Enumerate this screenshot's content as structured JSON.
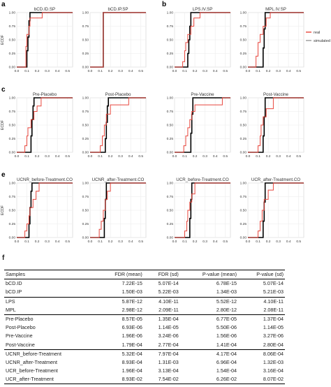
{
  "panel_letters": [
    "a",
    "b",
    "c",
    "e",
    "f"
  ],
  "y_axis_label": "ECDF",
  "legend": {
    "items": [
      {
        "label": "real",
        "color": "#e8463c"
      },
      {
        "label": "simulated",
        "color": "#9a9a9a"
      }
    ]
  },
  "colors": {
    "real": "#e8463c",
    "simulated": "#000000"
  },
  "chart_data": [
    {
      "type": "line",
      "title": "bCD.ID.SP",
      "xlim": [
        0,
        0.55
      ],
      "ylim": [
        0,
        1.0
      ],
      "x_ticks": [
        "0.0",
        "0.1",
        "0.2",
        "0.3",
        "0.4",
        "0.5"
      ],
      "y_ticks": [
        "0.00",
        "0.25",
        "0.50",
        "0.75",
        "1.00"
      ],
      "series": [
        {
          "name": "real",
          "x": [
            0.06,
            0.09,
            0.1,
            0.12,
            0.13,
            0.25,
            0.55
          ],
          "y": [
            0.0,
            0.38,
            0.6,
            0.75,
            0.9,
            1.0,
            1.0
          ]
        },
        {
          "name": "simulated",
          "x": [
            0.09,
            0.1,
            0.11,
            0.12,
            0.13,
            0.55
          ],
          "y": [
            0.0,
            0.3,
            0.55,
            0.85,
            1.0,
            1.0
          ]
        }
      ]
    },
    {
      "type": "line",
      "title": "bCD.IP.SP",
      "xlim": [
        0,
        0.55
      ],
      "ylim": [
        0,
        1.0
      ],
      "x_ticks": [
        "0.0",
        "0.1",
        "0.2",
        "0.3",
        "0.4",
        "0.5"
      ],
      "y_ticks": [
        "0.00",
        "0.25",
        "0.50",
        "0.75",
        "1.00"
      ],
      "series": [
        {
          "name": "real",
          "x": [
            0.12,
            0.13,
            0.55
          ],
          "y": [
            0.0,
            1.0,
            1.0
          ]
        },
        {
          "name": "simulated",
          "x": [
            0.12,
            0.13,
            0.55
          ],
          "y": [
            0.0,
            1.0,
            1.0
          ]
        }
      ]
    },
    {
      "type": "line",
      "title": "LPS.IV.SP",
      "xlim": [
        0,
        0.55
      ],
      "ylim": [
        0,
        1.0
      ],
      "x_ticks": [
        "0.0",
        "0.1",
        "0.2",
        "0.3",
        "0.4",
        "0.5"
      ],
      "y_ticks": [
        "0.00",
        "0.25",
        "0.50",
        "0.75",
        "1.00"
      ],
      "series": [
        {
          "name": "real",
          "x": [
            0.07,
            0.08,
            0.1,
            0.11,
            0.13,
            0.16,
            0.19,
            0.25,
            0.55
          ],
          "y": [
            0.0,
            0.1,
            0.3,
            0.45,
            0.6,
            0.75,
            0.9,
            1.0,
            1.0
          ]
        },
        {
          "name": "simulated",
          "x": [
            0.12,
            0.13,
            0.14,
            0.15,
            0.16,
            0.55
          ],
          "y": [
            0.0,
            0.25,
            0.5,
            0.75,
            1.0,
            1.0
          ]
        }
      ]
    },
    {
      "type": "line",
      "title": "MPL.IV.SP",
      "xlim": [
        0,
        0.55
      ],
      "ylim": [
        0,
        1.0
      ],
      "x_ticks": [
        "0.0",
        "0.1",
        "0.2",
        "0.3",
        "0.4",
        "0.5"
      ],
      "y_ticks": [
        "0.00",
        "0.25",
        "0.50",
        "0.75",
        "1.00"
      ],
      "series": [
        {
          "name": "real",
          "x": [
            0.06,
            0.08,
            0.1,
            0.12,
            0.15,
            0.18,
            0.22,
            0.55
          ],
          "y": [
            0.0,
            0.2,
            0.45,
            0.6,
            0.75,
            0.9,
            1.0,
            1.0
          ]
        },
        {
          "name": "simulated",
          "x": [
            0.14,
            0.15,
            0.16,
            0.17,
            0.55
          ],
          "y": [
            0.0,
            0.35,
            0.7,
            1.0,
            1.0
          ]
        }
      ]
    },
    {
      "type": "line",
      "title": "Pre-Placebo",
      "xlim": [
        0,
        0.55
      ],
      "ylim": [
        0,
        1.0
      ],
      "x_ticks": [
        "0.0",
        "0.1",
        "0.2",
        "0.3",
        "0.4",
        "0.5"
      ],
      "y_ticks": [
        "0.00",
        "0.25",
        "0.50",
        "0.75",
        "1.00"
      ],
      "series": [
        {
          "name": "real",
          "x": [
            0.05,
            0.08,
            0.1,
            0.11,
            0.14,
            0.17,
            0.2,
            0.24,
            0.55
          ],
          "y": [
            0.0,
            0.12,
            0.3,
            0.45,
            0.6,
            0.75,
            0.85,
            1.0,
            1.0
          ]
        },
        {
          "name": "simulated",
          "x": [
            0.13,
            0.14,
            0.15,
            0.16,
            0.17,
            0.55
          ],
          "y": [
            0.0,
            0.3,
            0.6,
            0.85,
            1.0,
            1.0
          ]
        }
      ]
    },
    {
      "type": "line",
      "title": "Post-Placebo",
      "xlim": [
        0,
        0.55
      ],
      "ylim": [
        0,
        1.0
      ],
      "x_ticks": [
        "0.0",
        "0.1",
        "0.2",
        "0.3",
        "0.4",
        "0.5"
      ],
      "y_ticks": [
        "0.00",
        "0.25",
        "0.50",
        "0.75",
        "1.00"
      ],
      "series": [
        {
          "name": "real",
          "x": [
            0.06,
            0.1,
            0.12,
            0.14,
            0.16,
            0.2,
            0.38,
            0.55
          ],
          "y": [
            0.0,
            0.12,
            0.3,
            0.5,
            0.7,
            0.87,
            1.0,
            1.0
          ]
        },
        {
          "name": "simulated",
          "x": [
            0.14,
            0.15,
            0.16,
            0.17,
            0.18,
            0.55
          ],
          "y": [
            0.0,
            0.25,
            0.55,
            0.85,
            1.0,
            1.0
          ]
        }
      ]
    },
    {
      "type": "line",
      "title": "Pre-Vaccine",
      "xlim": [
        0,
        0.55
      ],
      "ylim": [
        0,
        1.0
      ],
      "x_ticks": [
        "0.0",
        "0.1",
        "0.2",
        "0.3",
        "0.4",
        "0.5"
      ],
      "y_ticks": [
        "0.00",
        "0.25",
        "0.50",
        "0.75",
        "1.00"
      ],
      "series": [
        {
          "name": "real",
          "x": [
            0.07,
            0.09,
            0.11,
            0.13,
            0.15,
            0.17,
            0.2,
            0.47,
            0.55
          ],
          "y": [
            0.0,
            0.12,
            0.3,
            0.45,
            0.6,
            0.75,
            0.87,
            1.0,
            1.0
          ]
        },
        {
          "name": "simulated",
          "x": [
            0.15,
            0.16,
            0.17,
            0.18,
            0.55
          ],
          "y": [
            0.0,
            0.35,
            0.7,
            1.0,
            1.0
          ]
        }
      ]
    },
    {
      "type": "line",
      "title": "Post-Vaccine",
      "xlim": [
        0,
        0.55
      ],
      "ylim": [
        0,
        1.0
      ],
      "x_ticks": [
        "0.0",
        "0.1",
        "0.2",
        "0.3",
        "0.4",
        "0.5"
      ],
      "y_ticks": [
        "0.00",
        "0.25",
        "0.50",
        "0.75",
        "1.00"
      ],
      "series": [
        {
          "name": "real",
          "x": [
            0.07,
            0.1,
            0.12,
            0.13,
            0.15,
            0.18,
            0.25,
            0.55
          ],
          "y": [
            0.0,
            0.12,
            0.3,
            0.5,
            0.65,
            0.8,
            1.0,
            1.0
          ]
        },
        {
          "name": "simulated",
          "x": [
            0.14,
            0.15,
            0.16,
            0.17,
            0.55
          ],
          "y": [
            0.0,
            0.3,
            0.65,
            1.0,
            1.0
          ]
        }
      ]
    },
    {
      "type": "line",
      "title": "UCNR_before-Treatment.CO",
      "xlim": [
        0,
        0.55
      ],
      "ylim": [
        0,
        1.0
      ],
      "x_ticks": [
        "0.0",
        "0.1",
        "0.2",
        "0.3",
        "0.4",
        "0.5"
      ],
      "y_ticks": [
        "0.00",
        "0.25",
        "0.50",
        "0.75",
        "1.00"
      ],
      "series": [
        {
          "name": "real",
          "x": [
            0.05,
            0.08,
            0.1,
            0.12,
            0.13,
            0.16,
            0.19,
            0.22,
            0.55
          ],
          "y": [
            0.0,
            0.12,
            0.25,
            0.4,
            0.55,
            0.7,
            0.85,
            1.0,
            1.0
          ]
        },
        {
          "name": "simulated",
          "x": [
            0.11,
            0.12,
            0.13,
            0.14,
            0.15,
            0.55
          ],
          "y": [
            0.0,
            0.25,
            0.55,
            0.85,
            1.0,
            1.0
          ]
        }
      ]
    },
    {
      "type": "line",
      "title": "UCNR_after-Treatment.CO",
      "xlim": [
        0,
        0.55
      ],
      "ylim": [
        0,
        1.0
      ],
      "x_ticks": [
        "0.0",
        "0.1",
        "0.2",
        "0.3",
        "0.4",
        "0.5"
      ],
      "y_ticks": [
        "0.00",
        "0.25",
        "0.50",
        "0.75",
        "1.00"
      ],
      "series": [
        {
          "name": "real",
          "x": [
            0.06,
            0.09,
            0.11,
            0.13,
            0.15,
            0.17,
            0.2,
            0.55
          ],
          "y": [
            0.0,
            0.15,
            0.3,
            0.5,
            0.7,
            0.85,
            1.0,
            1.0
          ]
        },
        {
          "name": "simulated",
          "x": [
            0.13,
            0.14,
            0.15,
            0.16,
            0.55
          ],
          "y": [
            0.0,
            0.35,
            0.7,
            1.0,
            1.0
          ]
        }
      ]
    },
    {
      "type": "line",
      "title": "UCR_before-Treatment.CO",
      "xlim": [
        0,
        0.55
      ],
      "ylim": [
        0,
        1.0
      ],
      "x_ticks": [
        "0.0",
        "0.1",
        "0.2",
        "0.3",
        "0.4",
        "0.5"
      ],
      "y_ticks": [
        "0.00",
        "0.25",
        "0.50",
        "0.75",
        "1.00"
      ],
      "series": [
        {
          "name": "real",
          "x": [
            0.07,
            0.1,
            0.12,
            0.13,
            0.15,
            0.17,
            0.2,
            0.55
          ],
          "y": [
            0.0,
            0.12,
            0.3,
            0.5,
            0.65,
            0.8,
            1.0,
            1.0
          ]
        },
        {
          "name": "simulated",
          "x": [
            0.14,
            0.15,
            0.16,
            0.17,
            0.55
          ],
          "y": [
            0.0,
            0.35,
            0.7,
            1.0,
            1.0
          ]
        }
      ]
    },
    {
      "type": "line",
      "title": "UCR_after-Treatment.CO",
      "xlim": [
        0,
        0.55
      ],
      "ylim": [
        0,
        1.0
      ],
      "x_ticks": [
        "0.0",
        "0.1",
        "0.2",
        "0.3",
        "0.4",
        "0.5"
      ],
      "y_ticks": [
        "0.00",
        "0.25",
        "0.50",
        "0.75",
        "1.00"
      ],
      "series": [
        {
          "name": "real",
          "x": [
            0.09,
            0.1,
            0.12,
            0.14,
            0.16,
            0.2,
            0.25,
            0.55
          ],
          "y": [
            0.0,
            0.12,
            0.3,
            0.5,
            0.7,
            0.87,
            1.0,
            1.0
          ]
        },
        {
          "name": "simulated",
          "x": [
            0.14,
            0.15,
            0.16,
            0.17,
            0.55
          ],
          "y": [
            0.0,
            0.3,
            0.65,
            1.0,
            1.0
          ]
        }
      ]
    },
    {
      "type": "table",
      "columns": [
        "Samples",
        "FDR (mean)",
        "FDR (sd)",
        "P-value (mean)",
        "P-value (sd)"
      ],
      "rows": [
        [
          "bCD.ID",
          "7.22E-15",
          "5.07E-14",
          "6.78E-15",
          "5.07E-14"
        ],
        [
          "bCD.IP",
          "1.50E-03",
          "5.22E-03",
          "1.34E-03",
          "5.21E-03"
        ],
        [
          "LPS",
          "5.87E-12",
          "4.10E-11",
          "5.52E-12",
          "4.10E-11"
        ],
        [
          "MPL",
          "2.98E-12",
          "2.09E-11",
          "2.80E-12",
          "2.08E-11"
        ],
        [
          "Pre-Placebo",
          "8.57E-05",
          "1.35E-04",
          "6.77E-05",
          "1.37E-04"
        ],
        [
          "Post-Placebo",
          "6.93E-06",
          "1.14E-05",
          "5.50E-06",
          "1.14E-05"
        ],
        [
          "Pre-Vaccine",
          "1.96E-06",
          "3.24E-06",
          "1.56E-06",
          "3.27E-06"
        ],
        [
          "Post-Vaccine",
          "1.79E-04",
          "2.77E-04",
          "1.41E-04",
          "2.80E-04"
        ],
        [
          "UCNR_before-Treatment",
          "5.32E-04",
          "7.97E-04",
          "4.17E-04",
          "8.06E-04"
        ],
        [
          "UCNR_after-Treatment",
          "8.93E-04",
          "1.31E-03",
          "6.96E-04",
          "1.32E-03"
        ],
        [
          "UCR_before-Treatment",
          "1.96E-04",
          "3.13E-04",
          "1.54E-04",
          "3.16E-04"
        ],
        [
          "UCR_after-Treatment",
          "8.93E-02",
          "7.54E-02",
          "6.26E-02",
          "8.07E-02"
        ]
      ],
      "rule_after_rows": [
        1,
        3,
        7
      ]
    }
  ]
}
